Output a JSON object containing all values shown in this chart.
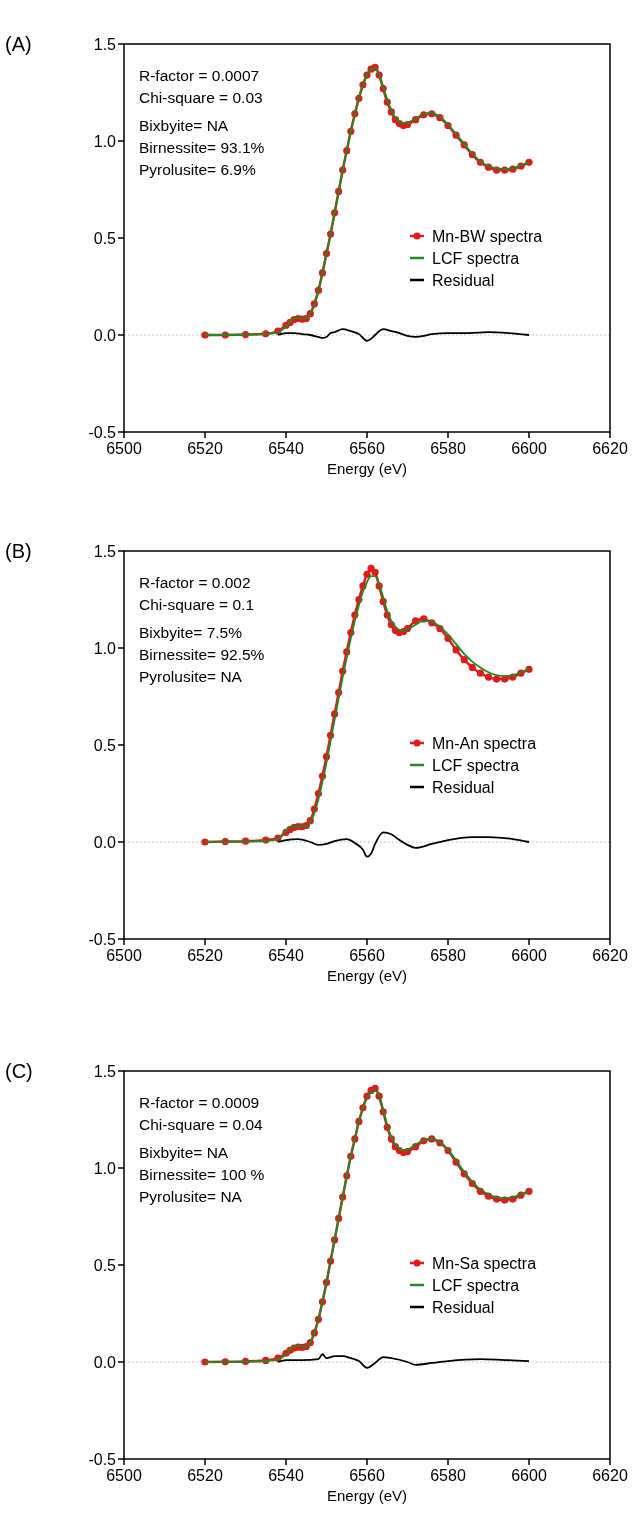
{
  "chart_data": [
    {
      "type": "line",
      "title": "(A)",
      "xlabel": "Energy (eV)",
      "xlim": [
        6500,
        6620
      ],
      "xticks": [
        6500,
        6520,
        6540,
        6560,
        6580,
        6600,
        6620
      ],
      "ylim": [
        -0.5,
        1.5
      ],
      "yticks": [
        {
          "value": -0.5,
          "label": "-0.5"
        },
        {
          "value": 0,
          "label": "0.0"
        },
        {
          "value": 0.5,
          "label": "0.5"
        },
        {
          "value": 1,
          "label": "1.0"
        },
        {
          "value": 1.5,
          "label": "1.5"
        }
      ],
      "grid": false,
      "legend": "right",
      "ref_lines": [
        {
          "axis": "y",
          "value": 0,
          "color": "#bbbbbb",
          "line_style": "dotted"
        }
      ],
      "annotations": [
        "R-factor = 0.0007",
        "Chi-square = 0.03",
        "Bixbyite= NA",
        "Birnessite= 93.1%",
        "Pyrolusite= 6.9%"
      ],
      "x": [
        6520,
        6525,
        6530,
        6535,
        6538,
        6540,
        6541,
        6542,
        6543,
        6544,
        6545,
        6546,
        6547,
        6548,
        6549,
        6550,
        6551,
        6552,
        6553,
        6554,
        6555,
        6556,
        6557,
        6558,
        6559,
        6560,
        6561,
        6562,
        6563,
        6564,
        6565,
        6566,
        6567,
        6568,
        6569,
        6570,
        6572,
        6574,
        6576,
        6578,
        6580,
        6582,
        6584,
        6586,
        6588,
        6590,
        6592,
        6594,
        6596,
        6598,
        6600
      ],
      "series": [
        {
          "name": "Mn-BW spectra",
          "color": "#e31a1c",
          "marker": "circle",
          "values": [
            0,
            0,
            0.002,
            0.006,
            0.02,
            0.05,
            0.065,
            0.08,
            0.085,
            0.082,
            0.085,
            0.11,
            0.16,
            0.23,
            0.32,
            0.42,
            0.52,
            0.63,
            0.74,
            0.85,
            0.95,
            1.05,
            1.14,
            1.22,
            1.29,
            1.34,
            1.37,
            1.38,
            1.34,
            1.27,
            1.2,
            1.15,
            1.11,
            1.09,
            1.08,
            1.085,
            1.11,
            1.135,
            1.14,
            1.12,
            1.08,
            1.03,
            0.98,
            0.93,
            0.89,
            0.865,
            0.85,
            0.85,
            0.855,
            0.87,
            0.89
          ]
        },
        {
          "name": "LCF spectra",
          "color": "#1f8a1f",
          "marker": "none",
          "values": [
            0,
            0,
            0.002,
            0.005,
            0.015,
            0.045,
            0.07,
            0.085,
            0.09,
            0.085,
            0.087,
            0.11,
            0.16,
            0.23,
            0.32,
            0.42,
            0.52,
            0.63,
            0.74,
            0.85,
            0.95,
            1.05,
            1.14,
            1.22,
            1.29,
            1.34,
            1.37,
            1.375,
            1.34,
            1.28,
            1.21,
            1.16,
            1.12,
            1.1,
            1.09,
            1.095,
            1.115,
            1.14,
            1.145,
            1.125,
            1.085,
            1.035,
            0.985,
            0.935,
            0.895,
            0.87,
            0.86,
            0.855,
            0.86,
            0.875,
            0.89
          ]
        },
        {
          "name": "Residual",
          "color": "#000000",
          "marker": "none",
          "x": [
            6538,
            6540,
            6542,
            6544,
            6546,
            6548,
            6549,
            6550,
            6551,
            6552,
            6554,
            6556,
            6558,
            6560,
            6561,
            6562,
            6563,
            6564,
            6566,
            6568,
            6570,
            6572,
            6574,
            6576,
            6580,
            6585,
            6590,
            6595,
            6600
          ],
          "values": [
            0,
            0.01,
            0.01,
            0.005,
            0,
            -0.01,
            -0.015,
            -0.01,
            0.01,
            0.015,
            0.03,
            0.02,
            0.005,
            -0.03,
            -0.02,
            0,
            0.02,
            0.03,
            0.02,
            0.01,
            -0.005,
            -0.01,
            -0.005,
            0.005,
            0.01,
            0.01,
            0.015,
            0.01,
            0
          ]
        }
      ]
    },
    {
      "type": "line",
      "title": "(B)",
      "xlabel": "Energy (eV)",
      "xlim": [
        6500,
        6620
      ],
      "xticks": [
        6500,
        6520,
        6540,
        6560,
        6580,
        6600,
        6620
      ],
      "ylim": [
        -0.5,
        1.5
      ],
      "yticks": [
        {
          "value": -0.5,
          "label": "-0.5"
        },
        {
          "value": 0,
          "label": "0.0"
        },
        {
          "value": 0.5,
          "label": "0.5"
        },
        {
          "value": 1,
          "label": "1.0"
        },
        {
          "value": 1.5,
          "label": "1.5"
        }
      ],
      "grid": false,
      "legend": "right",
      "ref_lines": [
        {
          "axis": "y",
          "value": 0,
          "color": "#bbbbbb",
          "line_style": "dotted"
        }
      ],
      "annotations": [
        "R-factor = 0.002",
        "Chi-square = 0.1",
        "Bixbyite= 7.5%",
        "Birnessite= 92.5%",
        "Pyrolusite= NA"
      ],
      "x": [
        6520,
        6525,
        6530,
        6535,
        6538,
        6540,
        6541,
        6542,
        6543,
        6544,
        6545,
        6546,
        6547,
        6548,
        6549,
        6550,
        6551,
        6552,
        6553,
        6554,
        6555,
        6556,
        6557,
        6558,
        6559,
        6560,
        6561,
        6562,
        6563,
        6564,
        6565,
        6566,
        6567,
        6568,
        6569,
        6570,
        6572,
        6574,
        6576,
        6578,
        6580,
        6582,
        6584,
        6586,
        6588,
        6590,
        6592,
        6594,
        6596,
        6598,
        6600
      ],
      "series": [
        {
          "name": "Mn-An spectra",
          "color": "#e31a1c",
          "marker": "circle",
          "values": [
            0,
            0.002,
            0.004,
            0.01,
            0.02,
            0.05,
            0.065,
            0.075,
            0.08,
            0.078,
            0.085,
            0.11,
            0.17,
            0.25,
            0.34,
            0.44,
            0.55,
            0.66,
            0.77,
            0.88,
            0.98,
            1.08,
            1.17,
            1.25,
            1.32,
            1.38,
            1.41,
            1.39,
            1.32,
            1.24,
            1.17,
            1.12,
            1.09,
            1.08,
            1.085,
            1.1,
            1.14,
            1.15,
            1.13,
            1.1,
            1.05,
            0.99,
            0.94,
            0.9,
            0.87,
            0.85,
            0.84,
            0.84,
            0.85,
            0.87,
            0.89
          ]
        },
        {
          "name": "LCF spectra",
          "color": "#1f8a1f",
          "marker": "none",
          "values": [
            0,
            0.001,
            0.002,
            0.005,
            0.015,
            0.06,
            0.075,
            0.08,
            0.08,
            0.08,
            0.08,
            0.1,
            0.15,
            0.22,
            0.31,
            0.41,
            0.52,
            0.63,
            0.74,
            0.85,
            0.95,
            1.05,
            1.14,
            1.22,
            1.29,
            1.34,
            1.37,
            1.37,
            1.33,
            1.26,
            1.19,
            1.14,
            1.11,
            1.09,
            1.09,
            1.095,
            1.12,
            1.14,
            1.135,
            1.11,
            1.07,
            1.02,
            0.97,
            0.93,
            0.9,
            0.875,
            0.86,
            0.855,
            0.86,
            0.875,
            0.89
          ]
        },
        {
          "name": "Residual",
          "color": "#000000",
          "marker": "none",
          "x": [
            6538,
            6540,
            6543,
            6546,
            6548,
            6550,
            6552,
            6555,
            6557,
            6559,
            6560,
            6561,
            6562,
            6564,
            6566,
            6568,
            6570,
            6572,
            6576,
            6580,
            6586,
            6590,
            6596,
            6600
          ],
          "values": [
            0,
            0.01,
            0.015,
            0,
            -0.015,
            -0.01,
            0.005,
            0.015,
            -0.005,
            -0.04,
            -0.075,
            -0.06,
            -0.01,
            0.05,
            0.04,
            0.01,
            -0.015,
            -0.03,
            -0.01,
            0.01,
            0.025,
            0.025,
            0.015,
            0
          ]
        }
      ]
    },
    {
      "type": "line",
      "title": "(C)",
      "xlabel": "Energy (eV)",
      "xlim": [
        6500,
        6620
      ],
      "xticks": [
        6500,
        6520,
        6540,
        6560,
        6580,
        6600,
        6620
      ],
      "ylim": [
        -0.5,
        1.5
      ],
      "yticks": [
        {
          "value": -0.5,
          "label": "-0.5"
        },
        {
          "value": 0,
          "label": "0.0"
        },
        {
          "value": 0.5,
          "label": "0.5"
        },
        {
          "value": 1,
          "label": "1.0"
        },
        {
          "value": 1.5,
          "label": "1.5"
        }
      ],
      "grid": false,
      "legend": "right",
      "ref_lines": [
        {
          "axis": "y",
          "value": 0,
          "color": "#bbbbbb",
          "line_style": "dotted"
        }
      ],
      "annotations": [
        "R-factor = 0.0009",
        "Chi-square = 0.04",
        "Bixbyite= NA",
        "Birnessite= 100 %",
        "Pyrolusite= NA"
      ],
      "x": [
        6520,
        6525,
        6530,
        6535,
        6538,
        6540,
        6541,
        6542,
        6543,
        6544,
        6545,
        6546,
        6547,
        6548,
        6549,
        6550,
        6551,
        6552,
        6553,
        6554,
        6555,
        6556,
        6557,
        6558,
        6559,
        6560,
        6561,
        6562,
        6563,
        6564,
        6565,
        6566,
        6567,
        6568,
        6569,
        6570,
        6572,
        6574,
        6576,
        6578,
        6580,
        6582,
        6584,
        6586,
        6588,
        6590,
        6592,
        6594,
        6596,
        6598,
        6600
      ],
      "series": [
        {
          "name": "Mn-Sa spectra",
          "color": "#e31a1c",
          "marker": "circle",
          "values": [
            0,
            0.001,
            0.003,
            0.008,
            0.02,
            0.045,
            0.06,
            0.072,
            0.077,
            0.075,
            0.08,
            0.1,
            0.15,
            0.22,
            0.31,
            0.41,
            0.52,
            0.63,
            0.74,
            0.85,
            0.96,
            1.06,
            1.15,
            1.24,
            1.31,
            1.37,
            1.4,
            1.41,
            1.37,
            1.29,
            1.21,
            1.15,
            1.11,
            1.09,
            1.08,
            1.085,
            1.11,
            1.14,
            1.15,
            1.13,
            1.09,
            1.03,
            0.97,
            0.92,
            0.88,
            0.855,
            0.84,
            0.835,
            0.84,
            0.86,
            0.88
          ]
        },
        {
          "name": "LCF spectra",
          "color": "#1f8a1f",
          "marker": "none",
          "values": [
            0,
            0,
            0.002,
            0.005,
            0.012,
            0.04,
            0.065,
            0.08,
            0.085,
            0.08,
            0.082,
            0.1,
            0.15,
            0.22,
            0.31,
            0.41,
            0.52,
            0.63,
            0.74,
            0.85,
            0.96,
            1.06,
            1.15,
            1.24,
            1.31,
            1.36,
            1.39,
            1.4,
            1.37,
            1.3,
            1.22,
            1.16,
            1.12,
            1.1,
            1.09,
            1.095,
            1.12,
            1.145,
            1.15,
            1.135,
            1.095,
            1.04,
            0.98,
            0.93,
            0.89,
            0.865,
            0.85,
            0.845,
            0.85,
            0.865,
            0.88
          ]
        },
        {
          "name": "Residual",
          "color": "#000000",
          "marker": "none",
          "x": [
            6538,
            6540,
            6544,
            6548,
            6549,
            6550,
            6552,
            6554,
            6556,
            6558,
            6560,
            6562,
            6564,
            6566,
            6570,
            6572,
            6576,
            6580,
            6588,
            6594,
            6600
          ],
          "values": [
            0,
            0.01,
            0.01,
            0.015,
            0.04,
            0.02,
            0.03,
            0.03,
            0.02,
            0.005,
            -0.03,
            -0.005,
            0.025,
            0.02,
            0,
            -0.015,
            -0.005,
            0.005,
            0.015,
            0.01,
            0.005
          ]
        }
      ]
    }
  ]
}
